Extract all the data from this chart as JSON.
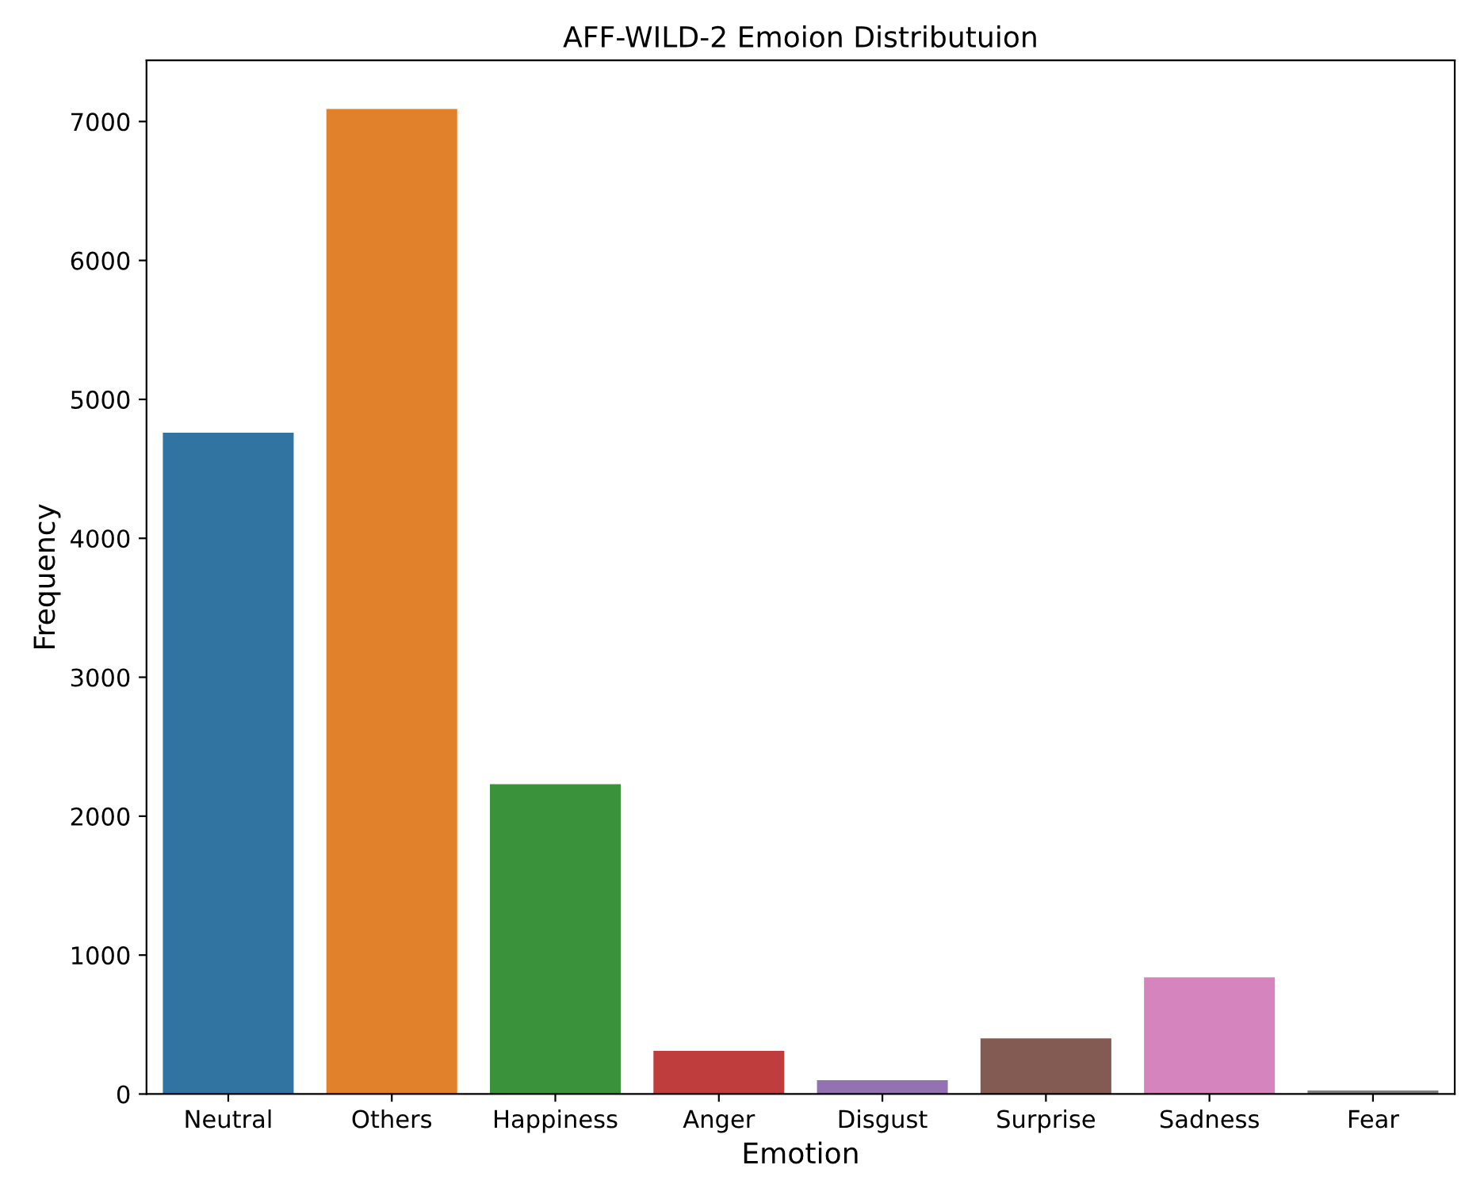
{
  "chart_data": {
    "type": "bar",
    "title": "AFF-WILD-2 Emoion Distributuion",
    "xlabel": "Emotion",
    "ylabel": "Frequency",
    "categories": [
      "Neutral",
      "Others",
      "Happiness",
      "Anger",
      "Disgust",
      "Surprise",
      "Sadness",
      "Fear"
    ],
    "values": [
      4760,
      7090,
      2230,
      310,
      100,
      400,
      840,
      25
    ],
    "colors": [
      "#3274a1",
      "#e1812c",
      "#3a923a",
      "#c03d3e",
      "#9372b2",
      "#845b53",
      "#d684bd",
      "#7f7f7f"
    ],
    "ylim": [
      0,
      7440
    ],
    "yticks": [
      0,
      1000,
      2000,
      3000,
      4000,
      5000,
      6000,
      7000
    ],
    "grid": false,
    "legend": false
  }
}
